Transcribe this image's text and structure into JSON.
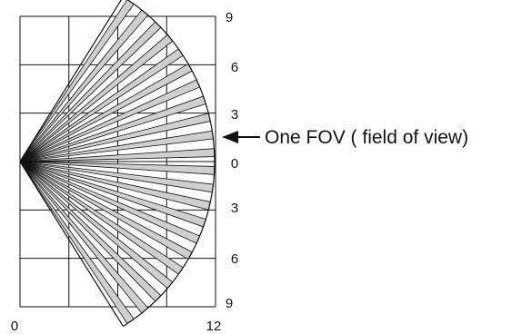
{
  "diagram": {
    "right_axis_labels": [
      "9",
      "6",
      "3",
      "0",
      "3",
      "6",
      "9"
    ],
    "bottom_axis_labels": [
      "0",
      "12"
    ],
    "callout": "One FOV ( field of view)",
    "zone_count": 22,
    "grid_columns": 4,
    "grid_rows": 6,
    "colors": {
      "line": "#111111",
      "zone_fill": "#cfcfcf",
      "background": "#ffffff"
    }
  }
}
